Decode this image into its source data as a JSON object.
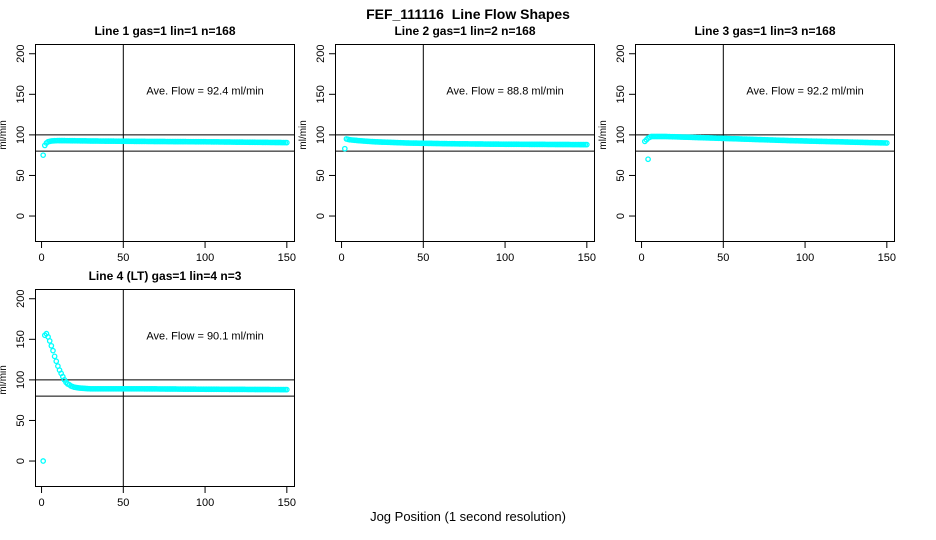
{
  "figure": {
    "title": "FEF_111116  Line Flow Shapes",
    "xlabel": "Jog Position (1 second resolution)",
    "background": "#FFFFFF",
    "point_color": "#00FFFF",
    "axis_color": "#000000"
  },
  "chart_data": [
    {
      "type": "scatter",
      "title": "Line 1 gas=1 lin=1 n=168",
      "line": 1,
      "gas": 1,
      "lin": 1,
      "n": 168,
      "annotation": "Ave. Flow =  92.4  ml/min",
      "ave_flow_ml_min": 92.4,
      "ylabel": "ml/min",
      "x_ticks": [
        0,
        50,
        100,
        150
      ],
      "y_ticks": [
        0,
        50,
        100,
        150,
        200
      ],
      "xlim": [
        -4,
        155
      ],
      "ylim": [
        -32,
        212
      ],
      "ref_lines_h": [
        80,
        100
      ],
      "ref_lines_v": [
        50
      ],
      "annotation_pos": [
        100,
        150
      ],
      "marker_step": 1,
      "points_keypoints": [
        [
          1,
          75
        ],
        [
          2,
          87
        ],
        [
          3,
          90
        ],
        [
          4,
          91.5
        ],
        [
          6,
          92.5
        ],
        [
          10,
          93
        ],
        [
          30,
          92.5
        ],
        [
          60,
          92
        ],
        [
          100,
          91.5
        ],
        [
          150,
          90.5
        ]
      ],
      "outlier_points": []
    },
    {
      "type": "scatter",
      "title": "Line 2 gas=1 lin=2 n=168",
      "line": 2,
      "gas": 1,
      "lin": 2,
      "n": 168,
      "annotation": "Ave. Flow =  88.8  ml/min",
      "ave_flow_ml_min": 88.8,
      "ylabel": "ml/min",
      "x_ticks": [
        0,
        50,
        100,
        150
      ],
      "y_ticks": [
        0,
        50,
        100,
        150,
        200
      ],
      "xlim": [
        -4,
        155
      ],
      "ylim": [
        -32,
        212
      ],
      "ref_lines_h": [
        80,
        100
      ],
      "ref_lines_v": [
        50
      ],
      "annotation_pos": [
        100,
        150
      ],
      "marker_step": 1,
      "points_keypoints": [
        [
          2,
          83
        ],
        [
          3,
          95
        ],
        [
          5,
          94
        ],
        [
          10,
          93
        ],
        [
          20,
          91.5
        ],
        [
          40,
          90
        ],
        [
          70,
          89
        ],
        [
          100,
          88.5
        ],
        [
          150,
          88
        ]
      ],
      "outlier_points": []
    },
    {
      "type": "scatter",
      "title": "Line 3 gas=1 lin=3 n=168",
      "line": 3,
      "gas": 1,
      "lin": 3,
      "n": 168,
      "annotation": "Ave. Flow =  92.2  ml/min",
      "ave_flow_ml_min": 92.2,
      "ylabel": "ml/min",
      "x_ticks": [
        0,
        50,
        100,
        150
      ],
      "y_ticks": [
        0,
        50,
        100,
        150,
        200
      ],
      "xlim": [
        -4,
        155
      ],
      "ylim": [
        -32,
        212
      ],
      "ref_lines_h": [
        80,
        100
      ],
      "ref_lines_v": [
        50
      ],
      "annotation_pos": [
        100,
        150
      ],
      "marker_step": 1,
      "points_keypoints": [
        [
          2,
          92
        ],
        [
          4,
          96
        ],
        [
          6,
          98
        ],
        [
          15,
          98
        ],
        [
          30,
          97
        ],
        [
          60,
          95
        ],
        [
          90,
          93
        ],
        [
          120,
          91.5
        ],
        [
          150,
          90
        ]
      ],
      "outlier_points": [
        [
          4,
          70
        ]
      ]
    },
    {
      "type": "scatter",
      "title": "Line 4 (LT) gas=1 lin=4 n=3",
      "line": 4,
      "gas": 1,
      "lin": 4,
      "n": 3,
      "annotation": "Ave. Flow =  90.1  ml/min",
      "ave_flow_ml_min": 90.1,
      "ylabel": "ml/min",
      "x_ticks": [
        0,
        50,
        100,
        150
      ],
      "y_ticks": [
        0,
        50,
        100,
        150,
        200
      ],
      "xlim": [
        -4,
        155
      ],
      "ylim": [
        -32,
        212
      ],
      "ref_lines_h": [
        80,
        100
      ],
      "ref_lines_v": [
        50
      ],
      "annotation_pos": [
        100,
        150
      ],
      "marker_step": 1,
      "points_keypoints": [
        [
          2,
          155
        ],
        [
          3,
          157
        ],
        [
          4,
          153
        ],
        [
          5,
          148
        ],
        [
          6,
          142
        ],
        [
          7,
          136
        ],
        [
          8,
          129
        ],
        [
          9,
          123
        ],
        [
          10,
          117
        ],
        [
          11,
          112
        ],
        [
          12,
          108
        ],
        [
          13,
          104
        ],
        [
          14,
          100
        ],
        [
          15,
          97
        ],
        [
          16,
          95
        ],
        [
          17,
          94
        ],
        [
          18,
          92.5
        ],
        [
          20,
          91
        ],
        [
          23,
          90
        ],
        [
          26,
          89.5
        ],
        [
          30,
          89
        ],
        [
          60,
          89
        ],
        [
          100,
          88.5
        ],
        [
          150,
          88
        ]
      ],
      "outlier_points": [
        [
          1,
          0
        ]
      ]
    }
  ]
}
